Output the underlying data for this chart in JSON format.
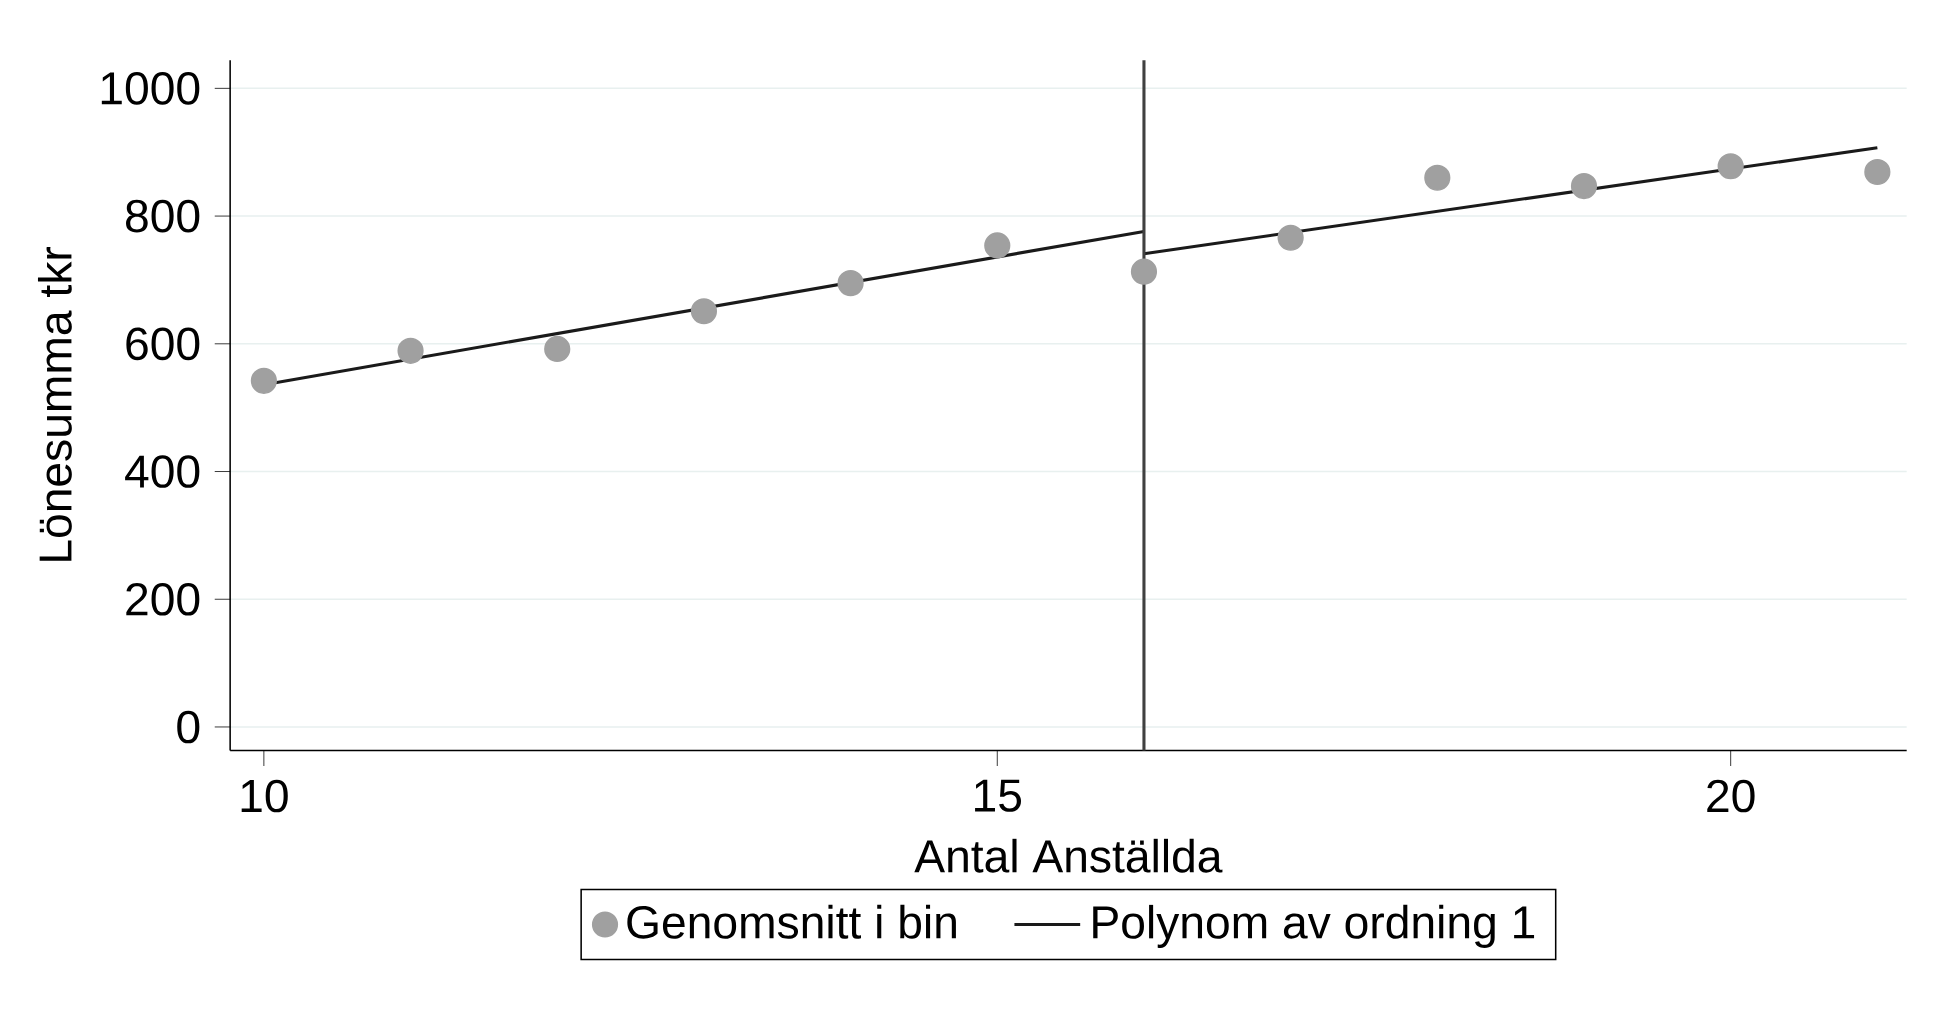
{
  "chart_data": {
    "type": "scatter",
    "xlabel": "Antal Anställda",
    "ylabel": "Lönesumma tkr",
    "xlim": [
      9.77,
      21.2
    ],
    "ylim": [
      -37,
      1044
    ],
    "xticks": [
      10,
      15,
      20
    ],
    "yticks": [
      0,
      200,
      400,
      600,
      800,
      1000
    ],
    "grid": "y",
    "legend": "bottom",
    "series": [
      {
        "name": "Genomsnitt i bin",
        "type": "scatter",
        "marker": "circle",
        "color": "#a0a0a0",
        "x": [
          10,
          11,
          12,
          13,
          14,
          15,
          16,
          17,
          18,
          19,
          20,
          21
        ],
        "values": [
          542,
          589,
          592,
          651,
          695,
          754,
          713,
          766,
          860,
          847,
          878,
          869
        ]
      },
      {
        "name": "Polynom av ordning 1",
        "type": "line",
        "marker": "none",
        "color": "#1a1a1a",
        "x": [
          10,
          16
        ],
        "values": [
          536,
          776
        ]
      },
      {
        "type": "line",
        "marker": "none",
        "color": "#1a1a1a",
        "x": [
          16,
          21
        ],
        "values": [
          741,
          907
        ]
      }
    ],
    "ref_lines": [
      {
        "axis": "x",
        "value": 16,
        "color": "#404040"
      }
    ]
  }
}
